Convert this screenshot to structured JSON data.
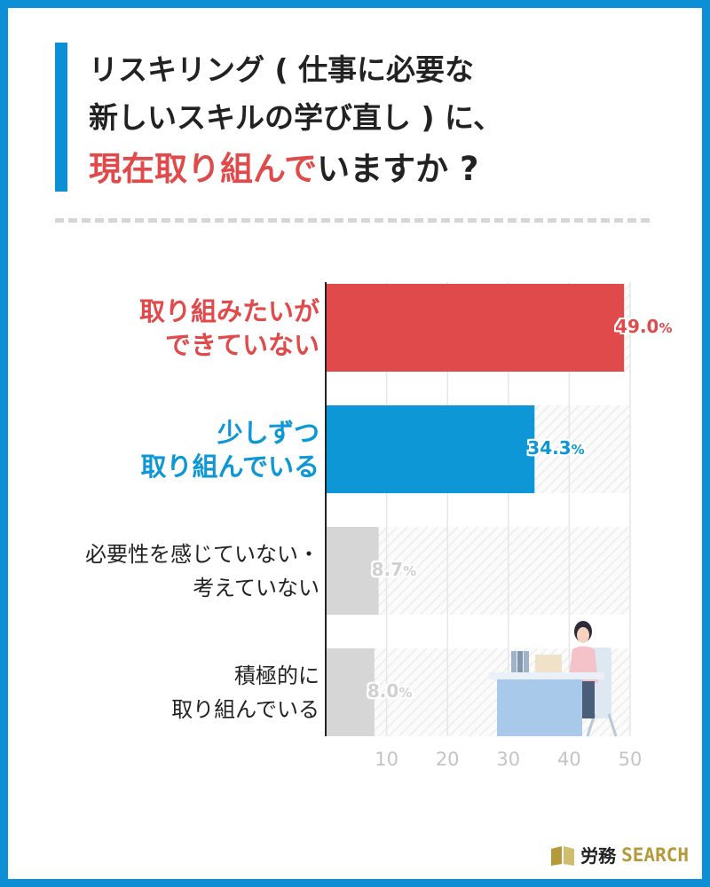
{
  "title": {
    "line1": "リスキリング ( 仕事に必要な",
    "line2": "新しいスキルの学び直し ) に、",
    "line3_highlight": "現在取り組んで",
    "line3_rest": "いますか ?"
  },
  "chart_data": {
    "type": "bar",
    "orientation": "horizontal",
    "categories": [
      "取り組みたいができていない",
      "少しずつ取り組んでいる",
      "必要性を感じていない・考えていない",
      "積極的に取り組んでいる"
    ],
    "category_lines": [
      [
        "取り組みたいが",
        "できていない"
      ],
      [
        "少しずつ",
        "取り組んでいる"
      ],
      [
        "必要性を感じていない・",
        "考えていない"
      ],
      [
        "積極的に",
        "取り組んでいる"
      ]
    ],
    "values": [
      49.0,
      34.3,
      8.7,
      8.0
    ],
    "value_labels": [
      {
        "num": "49.0",
        "unit": "%"
      },
      {
        "num": "34.3",
        "unit": "%"
      },
      {
        "num": "8.7",
        "unit": "%"
      },
      {
        "num": "8.0",
        "unit": "%"
      }
    ],
    "xlim": [
      0,
      50
    ],
    "xticks": [
      10,
      20,
      30,
      40,
      50
    ],
    "grid": true,
    "colors": [
      "#e04a4b",
      "#0d97d6",
      "#d6d6d6",
      "#d6d6d6"
    ],
    "label_colors": [
      "#e04a4b",
      "#0d97d6",
      "#222222",
      "#222222"
    ],
    "value_label_colors": [
      "#e04a4b",
      "#0d97d6",
      "#d0d0d0",
      "#d0d0d0"
    ]
  },
  "logo": {
    "jp": "労務",
    "en": "SEARCH"
  },
  "colors": {
    "frame": "#0d8fd6",
    "title_bar": "#0d8fd6",
    "highlight": "#e04a4b",
    "logo_gold": "#b59a3c"
  }
}
